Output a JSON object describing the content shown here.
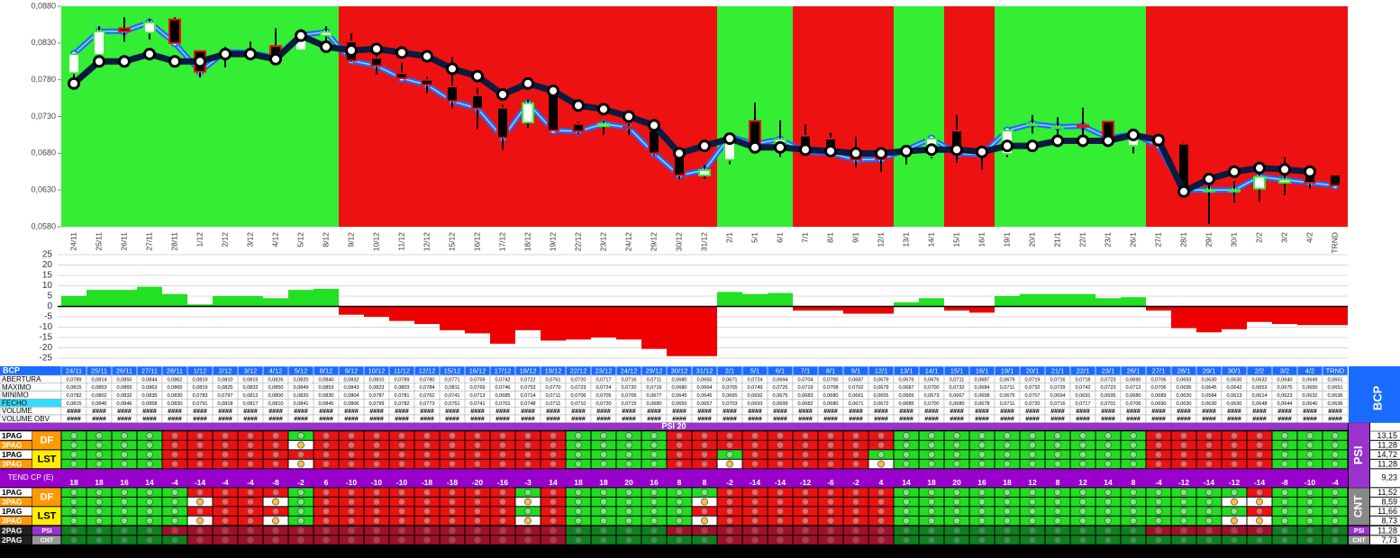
{
  "chart_data": [
    {
      "type": "candlestick",
      "categories": [
        "24/11",
        "25/11",
        "26/11",
        "27/11",
        "28/11",
        "1/12",
        "2/12",
        "3/12",
        "4/12",
        "5/12",
        "8/12",
        "9/12",
        "10/12",
        "11/12",
        "12/12",
        "15/12",
        "16/12",
        "17/12",
        "18/12",
        "19/12",
        "22/12",
        "23/12",
        "24/12",
        "29/12",
        "30/12",
        "31/12",
        "2/1",
        "5/1",
        "6/1",
        "7/1",
        "8/1",
        "9/1",
        "12/1",
        "13/1",
        "14/1",
        "15/1",
        "16/1",
        "19/1",
        "20/1",
        "21/1",
        "22/1",
        "23/1",
        "26/1",
        "27/1",
        "28/1",
        "29/1",
        "30/1",
        "2/2",
        "3/2",
        "4/2",
        "TRND"
      ],
      "series": [
        {
          "name": "ABERTURA",
          "values": [
            0.0789,
            0.0814,
            0.085,
            0.0844,
            0.0862,
            0.0819,
            0.081,
            0.0815,
            0.0826,
            0.082,
            0.084,
            0.0832,
            0.081,
            0.0789,
            0.078,
            0.0771,
            0.0759,
            0.0742,
            0.0722,
            0.0761,
            0.072,
            0.0717,
            0.0716,
            0.0711,
            0.068,
            0.065,
            0.0671,
            0.0724,
            0.0694,
            0.0704,
            0.07,
            0.0687,
            0.0679,
            0.0676,
            0.0676,
            0.0711,
            0.0687,
            0.0679,
            0.0719,
            0.0716,
            0.0718,
            0.0723,
            0.069,
            0.0706,
            0.0693,
            0.063,
            0.063,
            0.0632,
            0.064,
            0.0649,
            0.0651
          ],
          "value_labels": [
            "0,0789",
            "0,0814",
            "0,0850",
            "0,0844",
            "0,0862",
            "0,0819",
            "0,0810",
            "0,0815",
            "0,0826",
            "0,0820",
            "0,0840",
            "0,0832",
            "0,0810",
            "0,0789",
            "0,0780",
            "0,0771",
            "0,0759",
            "0,0742",
            "0,0722",
            "0,0761",
            "0,0720",
            "0,0717",
            "0,0716",
            "0,0711",
            "0,0680",
            "0,0650",
            "0,0671",
            "0,0724",
            "0,0694",
            "0,0704",
            "0,0700",
            "0,0687",
            "0,0679",
            "0,0676",
            "0,0676",
            "0,0711",
            "0,0687",
            "0,0679",
            "0,0719",
            "0,0716",
            "0,0718",
            "0,0723",
            "0,0690",
            "0,0706",
            "0,0693",
            "0,0630",
            "0,0630",
            "0,0632",
            "0,0640",
            "0,0649",
            "0,0651"
          ]
        },
        {
          "name": "MAXIMO",
          "values": [
            0.0815,
            0.0853,
            0.0865,
            0.0863,
            0.0865,
            0.0819,
            0.0825,
            0.0832,
            0.085,
            0.0849,
            0.0853,
            0.0843,
            0.0823,
            0.0803,
            0.0784,
            0.0811,
            0.0769,
            0.0746,
            0.0753,
            0.077,
            0.0723,
            0.0724,
            0.072,
            0.0716,
            0.068,
            0.0664,
            0.0705,
            0.0749,
            0.0725,
            0.0719,
            0.0708,
            0.0702,
            0.0679,
            0.0687,
            0.07,
            0.0732,
            0.0684,
            0.0711,
            0.0732,
            0.0729,
            0.0742,
            0.0723,
            0.0712,
            0.0706,
            0.0695,
            0.0645,
            0.0642,
            0.0653,
            0.0675,
            0.065,
            0.0651
          ],
          "value_labels": [
            "0,0815",
            "0,0853",
            "0,0865",
            "0,0863",
            "0,0865",
            "0,0819",
            "0,0825",
            "0,0832",
            "0,0850",
            "0,0849",
            "0,0853",
            "0,0843",
            "0,0823",
            "0,0803",
            "0,0784",
            "0,0811",
            "0,0769",
            "0,0746",
            "0,0753",
            "0,0770",
            "0,0723",
            "0,0724",
            "0,0720",
            "0,0716",
            "0,0680",
            "0,0664",
            "0,0705",
            "0,0749",
            "0,0725",
            "0,0719",
            "0,0708",
            "0,0702",
            "0,0679",
            "0,0687",
            "0,0700",
            "0,0732",
            "0,0684",
            "0,0711",
            "0,0732",
            "0,0729",
            "0,0742",
            "0,0723",
            "0,0712",
            "0,0706",
            "0,0695",
            "0,0645",
            "0,0642",
            "0,0653",
            "0,0675",
            "0,0650",
            "0,0651"
          ]
        },
        {
          "name": "MINIMO",
          "values": [
            0.0782,
            0.0802,
            0.0832,
            0.0835,
            0.083,
            0.0783,
            0.0797,
            0.0812,
            0.08,
            0.082,
            0.083,
            0.0804,
            0.0787,
            0.0781,
            0.0762,
            0.0741,
            0.0713,
            0.0685,
            0.0714,
            0.0711,
            0.0706,
            0.0705,
            0.0705,
            0.0677,
            0.0645,
            0.0645,
            0.0665,
            0.0692,
            0.0675,
            0.0683,
            0.068,
            0.0661,
            0.0655,
            0.0665,
            0.0673,
            0.0667,
            0.0658,
            0.0675,
            0.0707,
            0.0694,
            0.0691,
            0.0695,
            0.068,
            0.0689,
            0.062,
            0.0584,
            0.0613,
            0.0614,
            0.0623,
            0.0632,
            0.0636
          ],
          "value_labels": [
            "0,0782",
            "0,0802",
            "0,0832",
            "0,0835",
            "0,0830",
            "0,0783",
            "0,0797",
            "0,0812",
            "0,0800",
            "0,0820",
            "0,0830",
            "0,0804",
            "0,0787",
            "0,0781",
            "0,0762",
            "0,0741",
            "0,0713",
            "0,0685",
            "0,0714",
            "0,0711",
            "0,0706",
            "0,0705",
            "0,0705",
            "0,0677",
            "0,0645",
            "0,0645",
            "0,0665",
            "0,0692",
            "0,0675",
            "0,0683",
            "0,0680",
            "0,0661",
            "0,0655",
            "0,0665",
            "0,0673",
            "0,0667",
            "0,0658",
            "0,0675",
            "0,0707",
            "0,0694",
            "0,0691",
            "0,0695",
            "0,0680",
            "0,0689",
            "0,0620",
            "0,0584",
            "0,0613",
            "0,0614",
            "0,0623",
            "0,0632",
            "0,0636"
          ]
        },
        {
          "name": "FECHO",
          "color": "#1e6bff",
          "values": [
            0.0815,
            0.0846,
            0.0846,
            0.0858,
            0.083,
            0.0791,
            0.0818,
            0.0817,
            0.081,
            0.0841,
            0.0845,
            0.0806,
            0.0799,
            0.0782,
            0.0773,
            0.0751,
            0.0741,
            0.0701,
            0.0748,
            0.0711,
            0.071,
            0.072,
            0.0715,
            0.068,
            0.065,
            0.0657,
            0.0703,
            0.0693,
            0.0699,
            0.0682,
            0.068,
            0.0671,
            0.0672,
            0.0685,
            0.07,
            0.068,
            0.0678,
            0.0711,
            0.072,
            0.0716,
            0.0717,
            0.0701,
            0.0706,
            0.069,
            0.063,
            0.063,
            0.063,
            0.0648,
            0.0644,
            0.064,
            0.0636
          ],
          "value_labels": [
            "0,0815",
            "0,0846",
            "0,0846",
            "0,0858",
            "0,0830",
            "0,0791",
            "0,0818",
            "0,0817",
            "0,0810",
            "0,0841",
            "0,0845",
            "0,0806",
            "0,0799",
            "0,0782",
            "0,0773",
            "0,0751",
            "0,0741",
            "0,0701",
            "0,0748",
            "0,0711",
            "0,0710",
            "0,0720",
            "0,0715",
            "0,0680",
            "0,0650",
            "0,0657",
            "0,0703",
            "0,0693",
            "0,0699",
            "0,0682",
            "0,0680",
            "0,0671",
            "0,0672",
            "0,0685",
            "0,0700",
            "0,0680",
            "0,0678",
            "0,0711",
            "0,0720",
            "0,0716",
            "0,0717",
            "0,0701",
            "0,0706",
            "0,0690",
            "0,0630",
            "0,0630",
            "0,0630",
            "0,0648",
            "0,0644",
            "0,0640",
            "0,0636"
          ]
        }
      ],
      "line": {
        "color": "#0b1b3f",
        "values": [
          0.0775,
          0.0805,
          0.0805,
          0.0815,
          0.0805,
          0.0805,
          0.0815,
          0.0815,
          0.0808,
          0.084,
          0.0825,
          0.082,
          0.0822,
          0.0817,
          0.0812,
          0.0795,
          0.0785,
          0.076,
          0.0775,
          0.0765,
          0.0745,
          0.074,
          0.073,
          0.0718,
          0.068,
          0.069,
          0.07,
          0.0688,
          0.0688,
          0.0685,
          0.0683,
          0.068,
          0.068,
          0.0683,
          0.0685,
          0.0685,
          0.0682,
          0.069,
          0.069,
          0.0697,
          0.0697,
          0.0697,
          0.0705,
          0.0698,
          0.0628,
          0.0645,
          0.0655,
          0.066,
          0.0658,
          0.0655,
          null
        ]
      },
      "up_color": "#33ee33",
      "down_color": "#ee1111",
      "up_fill": "#ffffff",
      "down_fill": "#000000",
      "wick_color": "#000000",
      "ylim": [
        0.058,
        0.088
      ],
      "yticks": [
        {
          "value": 0.088,
          "label": "0,0880"
        },
        {
          "value": 0.083,
          "label": "0,0830"
        },
        {
          "value": 0.078,
          "label": "0,0780"
        },
        {
          "value": 0.073,
          "label": "0,0730"
        },
        {
          "value": 0.068,
          "label": "0,0680"
        },
        {
          "value": 0.063,
          "label": "0,0630"
        },
        {
          "value": 0.058,
          "label": "0,0580"
        }
      ]
    },
    {
      "type": "bar",
      "values": [
        5,
        8,
        8,
        9.5,
        6,
        1,
        5,
        5,
        4,
        8,
        8.5,
        -4,
        -5,
        -7,
        -8.5,
        -11.5,
        -13,
        -18,
        -11.5,
        -16.5,
        -16,
        -15,
        -16,
        -20.5,
        -24,
        -24,
        7,
        6,
        6.5,
        -2,
        -2,
        -3.5,
        -3.5,
        2,
        4,
        -2,
        -3,
        5,
        6,
        6,
        6,
        4,
        4.5,
        -2,
        -10.5,
        -12.5,
        -11,
        -7.5,
        -8.5,
        -9,
        -9
      ],
      "positive_color": "#22e022",
      "negative_color": "#ee0000",
      "ylim": [
        -25,
        25
      ],
      "yticks": [
        25,
        20,
        15,
        10,
        5,
        0,
        -5,
        -10,
        -15,
        -20,
        -25
      ],
      "grid": true
    }
  ],
  "table": {
    "title": "BCP",
    "side_label": "BCP",
    "volume_rows": [
      {
        "label": "VOLUME",
        "cells": [
          "####",
          "####",
          "####",
          "####",
          "####",
          "####",
          "####",
          "####",
          "####",
          "####",
          "####",
          "####",
          "####",
          "####",
          "####",
          "####",
          "####",
          "####",
          "####",
          "####",
          "####",
          "####",
          "####",
          "####",
          "####",
          "####",
          "####",
          "####",
          "####",
          "####",
          "####",
          "####",
          "####",
          "####",
          "####",
          "####",
          "####",
          "####",
          "####",
          "####",
          "####",
          "####",
          "####",
          "####",
          "####",
          "####",
          "####",
          "####",
          "####",
          "####",
          "####"
        ]
      },
      {
        "label": "VOLUME OBV",
        "cells": [
          "####",
          "####",
          "####",
          "####",
          "####",
          "####",
          "####",
          "####",
          "####",
          "####",
          "####",
          "####",
          "####",
          "####",
          "####",
          "####",
          "####",
          "####",
          "####",
          "####",
          "####",
          "####",
          "####",
          "####",
          "####",
          "####",
          "####",
          "####",
          "####",
          "####",
          "####",
          "####",
          "####",
          "####",
          "####",
          "####",
          "####",
          "####",
          "####",
          "####",
          "####",
          "####",
          "####",
          "####",
          "####",
          "####",
          "####",
          "####",
          "####",
          "####",
          "####"
        ]
      }
    ]
  },
  "signals": {
    "title": "PSI 20",
    "side_labels": [
      "PSI",
      "CNT"
    ],
    "blocks": [
      {
        "group": "DF",
        "rows": [
          {
            "label": "1PAG",
            "states": "GGGGRRRRRGRRRRRRRRRRGGGGRRRRRRRRRGGGGGGGGGGRRRRRGGG",
            "total": "13,15"
          },
          {
            "label": "3PAG",
            "states": "GGGGRRRRRWRRRRRRRRRRGGGGRRRRRRRRRGGGGGGGGGGRRRRRGGG",
            "total": "11,28"
          }
        ]
      },
      {
        "group": "LST",
        "rows": [
          {
            "label": "1PAG",
            "states": "GGGGRRRRRRRRRRRRRRRRGGGGRRGRRRRRGGGGGGGGGGGRRRRRGGG",
            "total": "14,72"
          },
          {
            "label": "3PAG",
            "states": "GGGGRRRRRWRRRRRRRRRRGGGGRRWRRRRRWGGGGGGGGGGRRRRRGGG",
            "total": "11,28"
          }
        ]
      },
      {
        "group": "DF",
        "rows": [
          {
            "label": "1PAG",
            "states": "GGGGGRRRRGRRRRRRRRGRGGGGGGRRRRRRRGGGGGGGGGGGGGGRGGG",
            "total": "11,52"
          },
          {
            "label": "3PAG",
            "states": "GGGGGWRRWGRRRRRRRRWRGGGGGWRRRRRRRGGGGGGGGGGGGGWWGGG",
            "total": "8,59"
          }
        ]
      },
      {
        "group": "LST",
        "rows": [
          {
            "label": "1PAG",
            "states": "GGGGGRRRRGRRRRRRRRGRGGGGGRRRRRRRRGGGGGGGGGGGGGGRGGG",
            "total": "11,66"
          },
          {
            "label": "3PAG",
            "states": "GGGGGWRRWGRRRRRRRRWRGGGGGWRRRRRRRGGGGGGGGGGGGGWWGGG",
            "total": "8,73"
          }
        ]
      }
    ],
    "tend": {
      "label": "TEND CP (E)",
      "values": [
        18,
        18,
        16,
        14,
        -4,
        -14,
        -4,
        -4,
        -8,
        -2,
        6,
        -10,
        -10,
        -10,
        -18,
        -18,
        -20,
        -16,
        -3,
        14,
        18,
        18,
        20,
        16,
        8,
        8,
        -2,
        -14,
        -14,
        -12,
        -6,
        -2,
        4,
        14,
        18,
        20,
        16,
        18,
        12,
        8,
        12,
        14,
        8,
        -4,
        -12,
        -14,
        -12,
        -14,
        -8,
        -10,
        -4
      ],
      "total": "9,23"
    },
    "final_rows": [
      {
        "label": "2PAG",
        "tag": "PSI",
        "states": "ggggrrrrrrrrrrrrrrrrggggrrrrrrrrrggggggggggrrrrrggg",
        "total": "11,28"
      },
      {
        "label": "2PAG",
        "tag": "CNT",
        "states": "gggggrrrrrrrrrrrrrrrggggggrrrrrrrgggggggggggggggggg",
        "total": "7,73"
      }
    ]
  }
}
